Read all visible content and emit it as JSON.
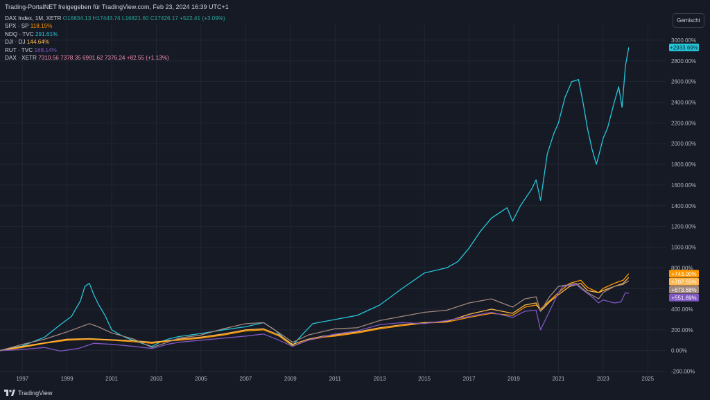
{
  "header": {
    "text": "Trading-PortalNET freigegeben für TradingView.com, Feb 23, 2024 16:39 UTC+1"
  },
  "legend": {
    "dax_index": {
      "name": "DAX Index, 1M, XETR",
      "o": "O16834.13",
      "h": "H17443.74",
      "l": "L16821.60",
      "c": "C17426.17",
      "chg": "+522.41 (+3.09%)",
      "color": "#26a69a"
    },
    "spx": {
      "name": "SPX · SP",
      "value": "118.15%",
      "color": "#ff9800"
    },
    "ndq": {
      "name": "NDQ · TVC",
      "value": "291.61%",
      "color": "#26c6da"
    },
    "dji": {
      "name": "DJI · DJ",
      "value": "144.64%",
      "color": "#ffb74d"
    },
    "rut": {
      "name": "RUT · TVC",
      "value": "168.14%",
      "color": "#7e57c2"
    },
    "dax": {
      "name": "DAX · XETR",
      "values": "7310.56  7378.35  6991.62  7376.24  +82.55 (+1.13%)",
      "color": "#f48fb1"
    }
  },
  "button": {
    "label": "Gemischt"
  },
  "footer": {
    "logo_icon": "tradingview-logo-icon",
    "text": "TradingView"
  },
  "chart_data": {
    "type": "line",
    "yscale": "percent",
    "xlim": [
      1996,
      2025.8
    ],
    "ylim": [
      -230,
      3020
    ],
    "yticks": [
      "-200.00%",
      "0.00%",
      "200.00%",
      "400.00%",
      "600.00%",
      "800.00%",
      "1000.00%",
      "1200.00%",
      "1400.00%",
      "1600.00%",
      "1800.00%",
      "2000.00%",
      "2200.00%",
      "2400.00%",
      "2600.00%",
      "2800.00%",
      "3000.00%"
    ],
    "ytick_values": [
      -200,
      0,
      200,
      400,
      600,
      800,
      1000,
      1200,
      1400,
      1600,
      1800,
      2000,
      2200,
      2400,
      2600,
      2800,
      3000
    ],
    "xticks": [
      "1997",
      "1999",
      "2001",
      "2003",
      "2005",
      "2007",
      "2009",
      "2011",
      "2013",
      "2015",
      "2017",
      "2019",
      "2021",
      "2023",
      "2025"
    ],
    "xtick_values": [
      1997,
      1999,
      2001,
      2003,
      2005,
      2007,
      2009,
      2011,
      2013,
      2015,
      2017,
      2019,
      2021,
      2023,
      2025
    ],
    "series": [
      {
        "name": "NDQ",
        "color": "#26c6da",
        "label": "+2933.69%",
        "x": [
          1996,
          1997,
          1998,
          1998.7,
          1999.2,
          1999.6,
          1999.8,
          2000.0,
          2000.2,
          2000.4,
          2000.7,
          2001.0,
          2001.4,
          2001.7,
          2002.0,
          2002.5,
          2002.8,
          2003.2,
          2003.6,
          2004,
          2005,
          2006,
          2007,
          2007.8,
          2008.3,
          2008.8,
          2009.1,
          2009.6,
          2010,
          2011,
          2012,
          2013,
          2014,
          2015,
          2016,
          2016.5,
          2017,
          2017.5,
          2018,
          2018.7,
          2018.95,
          2019.3,
          2019.8,
          2020.0,
          2020.2,
          2020.5,
          2020.8,
          2021.0,
          2021.3,
          2021.6,
          2021.9,
          2022.1,
          2022.3,
          2022.5,
          2022.7,
          2022.8,
          2023.0,
          2023.2,
          2023.5,
          2023.7,
          2023.85,
          2024.0,
          2024.15
        ],
        "values": [
          0,
          45,
          130,
          250,
          330,
          480,
          620,
          650,
          540,
          450,
          340,
          200,
          150,
          120,
          95,
          60,
          40,
          85,
          115,
          135,
          165,
          200,
          230,
          270,
          200,
          100,
          50,
          170,
          260,
          300,
          340,
          440,
          600,
          750,
          800,
          860,
          990,
          1150,
          1280,
          1380,
          1250,
          1400,
          1560,
          1650,
          1450,
          1900,
          2100,
          2200,
          2450,
          2600,
          2620,
          2400,
          2150,
          1950,
          1800,
          1880,
          2050,
          2150,
          2400,
          2550,
          2350,
          2750,
          2930
        ]
      },
      {
        "name": "SPX",
        "color": "#ff9800",
        "label": "+743.00%",
        "x": [
          1996,
          1997,
          1998,
          1999,
          2000,
          2001,
          2002,
          2002.8,
          2003.5,
          2004,
          2005,
          2006,
          2007,
          2007.8,
          2008.5,
          2009.1,
          2009.8,
          2010.5,
          2011,
          2012,
          2013,
          2014,
          2015,
          2016,
          2017,
          2018,
          2018.95,
          2019.5,
          2020.0,
          2020.2,
          2020.6,
          2021,
          2021.5,
          2022.0,
          2022.3,
          2022.8,
          2023.0,
          2023.5,
          2023.9,
          2024.15
        ],
        "values": [
          0,
          30,
          70,
          100,
          110,
          100,
          85,
          70,
          90,
          100,
          120,
          150,
          190,
          200,
          140,
          45,
          100,
          130,
          140,
          170,
          210,
          240,
          265,
          275,
          320,
          360,
          340,
          420,
          440,
          400,
          480,
          560,
          650,
          680,
          610,
          560,
          600,
          650,
          680,
          743
        ]
      },
      {
        "name": "DJI",
        "color": "#ffb74d",
        "label": "+707.55%",
        "x": [
          1996,
          1997,
          1998,
          1999,
          2000,
          2001,
          2002,
          2002.8,
          2003.5,
          2004,
          2005,
          2006,
          2007,
          2007.8,
          2008.5,
          2009.1,
          2009.8,
          2010.5,
          2011,
          2012,
          2013,
          2014,
          2015,
          2016,
          2017,
          2018,
          2018.95,
          2019.5,
          2020.0,
          2020.2,
          2020.6,
          2021,
          2021.5,
          2022.0,
          2022.3,
          2022.8,
          2023.0,
          2023.5,
          2023.9,
          2024.15
        ],
        "values": [
          0,
          40,
          75,
          110,
          115,
          105,
          95,
          80,
          95,
          110,
          130,
          160,
          200,
          210,
          150,
          60,
          110,
          140,
          150,
          180,
          220,
          250,
          270,
          280,
          350,
          400,
          360,
          440,
          460,
          380,
          470,
          540,
          620,
          650,
          580,
          560,
          580,
          620,
          650,
          707
        ]
      },
      {
        "name": "RUT",
        "color": "#7e57c2",
        "label": "+551.69%",
        "x": [
          1996,
          1997,
          1998,
          1998.7,
          1999.5,
          2000.2,
          2001,
          2002,
          2002.8,
          2003.5,
          2004,
          2005,
          2006,
          2007,
          2007.8,
          2008.5,
          2009.1,
          2009.8,
          2011,
          2012,
          2013,
          2014,
          2015,
          2016,
          2017,
          2018,
          2018.95,
          2019.5,
          2020.0,
          2020.2,
          2020.6,
          2021,
          2021.2,
          2021.8,
          2022.0,
          2022.5,
          2022.8,
          2023.0,
          2023.5,
          2023.8,
          2024.0,
          2024.15
        ],
        "values": [
          0,
          10,
          30,
          -5,
          20,
          70,
          60,
          40,
          20,
          60,
          80,
          100,
          120,
          140,
          160,
          100,
          40,
          100,
          160,
          190,
          250,
          270,
          260,
          290,
          330,
          370,
          320,
          380,
          390,
          200,
          380,
          560,
          620,
          640,
          600,
          520,
          460,
          490,
          460,
          470,
          560,
          552
        ]
      },
      {
        "name": "DAX",
        "color": "#a1887f",
        "label": "+673.68%",
        "x": [
          1996,
          1997,
          1998,
          1999,
          2000,
          2000.4,
          2001,
          2002,
          2002.8,
          2003.5,
          2004,
          2005,
          2006,
          2007,
          2007.8,
          2008.5,
          2009.1,
          2009.8,
          2011,
          2012,
          2013,
          2014,
          2015,
          2016,
          2017,
          2018,
          2018.95,
          2019.5,
          2020.0,
          2020.2,
          2020.6,
          2021,
          2021.8,
          2022.3,
          2022.8,
          2023.0,
          2023.5,
          2023.9,
          2024.15
        ],
        "values": [
          0,
          60,
          110,
          180,
          260,
          230,
          170,
          110,
          30,
          80,
          120,
          150,
          210,
          260,
          270,
          170,
          80,
          150,
          210,
          220,
          290,
          330,
          370,
          390,
          460,
          500,
          420,
          500,
          520,
          380,
          520,
          620,
          650,
          560,
          500,
          560,
          620,
          640,
          674
        ]
      }
    ]
  }
}
